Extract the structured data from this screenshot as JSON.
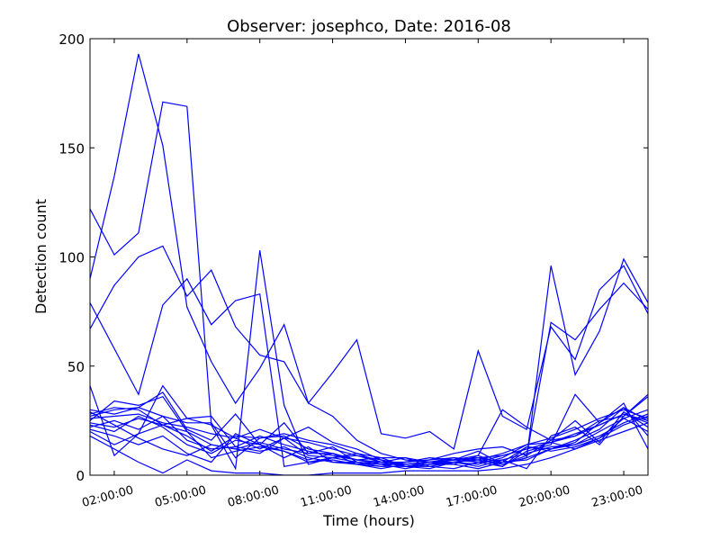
{
  "chart_data": {
    "type": "line",
    "title": "Observer: josephco, Date: 2016-08",
    "xlabel": "Time (hours)",
    "ylabel": "Detection count",
    "xlim": [
      1,
      24
    ],
    "ylim": [
      0,
      200
    ],
    "x_ticks": [
      "02:00:00",
      "05:00:00",
      "08:00:00",
      "11:00:00",
      "14:00:00",
      "17:00:00",
      "20:00:00",
      "23:00:00"
    ],
    "x_tick_hours": [
      2,
      5,
      8,
      11,
      14,
      17,
      20,
      23
    ],
    "y_ticks": [
      0,
      50,
      100,
      150,
      200
    ],
    "grid": false,
    "line_color": "#0000ff",
    "x": [
      1,
      2,
      3,
      4,
      5,
      6,
      7,
      8,
      9,
      10,
      11,
      12,
      13,
      14,
      15,
      16,
      17,
      18,
      19,
      20,
      21,
      22,
      23,
      24
    ],
    "series": [
      {
        "values": [
          122,
          101,
          111,
          171,
          169,
          23,
          17,
          12,
          17,
          15,
          12,
          9,
          7,
          5,
          6,
          7,
          6,
          9,
          12,
          15,
          18,
          23,
          28,
          25
        ]
      },
      {
        "values": [
          90,
          137,
          193,
          151,
          77,
          52,
          33,
          49,
          69,
          33,
          27,
          16,
          10,
          7,
          6,
          8,
          7,
          10,
          14,
          17,
          21,
          26,
          30,
          26
        ]
      },
      {
        "values": [
          67,
          87,
          100,
          105,
          82,
          94,
          68,
          55,
          52,
          33,
          47,
          62,
          19,
          17,
          20,
          12,
          57,
          27,
          21,
          68,
          53,
          85,
          96,
          74
        ]
      },
      {
        "values": [
          79,
          58,
          37,
          78,
          90,
          69,
          80,
          83,
          4,
          6,
          7,
          5,
          3,
          5,
          6,
          7,
          9,
          5,
          8,
          96,
          46,
          66,
          99,
          79
        ]
      },
      {
        "values": [
          41,
          9,
          19,
          41,
          26,
          23,
          3,
          103,
          32,
          5,
          8,
          6,
          4,
          6,
          7,
          10,
          12,
          13,
          9,
          70,
          62,
          76,
          88,
          76
        ]
      },
      {
        "values": [
          30,
          28,
          31,
          27,
          24,
          24,
          8,
          17,
          19,
          16,
          14,
          10,
          8,
          8,
          6,
          5,
          9,
          30,
          22,
          16,
          25,
          15,
          29,
          22
        ]
      },
      {
        "values": [
          28,
          31,
          30,
          23,
          18,
          11,
          18,
          17,
          18,
          12,
          10,
          7,
          5,
          6,
          8,
          7,
          8,
          4,
          11,
          14,
          37,
          24,
          31,
          18
        ]
      },
      {
        "values": [
          27,
          30,
          31,
          38,
          21,
          16,
          28,
          14,
          11,
          7,
          10,
          7,
          8,
          4,
          6,
          7,
          8,
          9,
          12,
          15,
          12,
          17,
          26,
          20
        ]
      },
      {
        "values": [
          26,
          27,
          28,
          24,
          22,
          19,
          17,
          21,
          17,
          9,
          8,
          9,
          6,
          6,
          7,
          8,
          6,
          7,
          10,
          13,
          14,
          18,
          24,
          28
        ]
      },
      {
        "values": [
          25,
          34,
          32,
          36,
          20,
          14,
          12,
          15,
          12,
          10,
          13,
          6,
          5,
          3,
          5,
          7,
          11,
          5,
          9,
          16,
          18,
          25,
          27,
          36
        ]
      },
      {
        "values": [
          24,
          22,
          26,
          23,
          26,
          27,
          13,
          18,
          14,
          11,
          9,
          7,
          6,
          4,
          5,
          6,
          5,
          8,
          14,
          15,
          19,
          23,
          28,
          24
        ]
      },
      {
        "values": [
          23,
          20,
          27,
          22,
          14,
          10,
          16,
          14,
          24,
          10,
          10,
          5,
          4,
          4,
          3,
          6,
          8,
          6,
          13,
          12,
          16,
          21,
          31,
          25
        ]
      },
      {
        "values": [
          22,
          25,
          21,
          27,
          16,
          12,
          13,
          11,
          13,
          8,
          6,
          6,
          5,
          5,
          6,
          6,
          7,
          5,
          8,
          12,
          15,
          24,
          33,
          12
        ]
      },
      {
        "values": [
          21,
          18,
          14,
          18,
          10,
          6,
          19,
          14,
          8,
          13,
          6,
          5,
          6,
          8,
          4,
          6,
          4,
          7,
          3,
          18,
          22,
          14,
          27,
          37
        ]
      },
      {
        "values": [
          20,
          14,
          19,
          23,
          20,
          8,
          11,
          13,
          11,
          6,
          8,
          10,
          6,
          4,
          5,
          5,
          3,
          6,
          7,
          12,
          14,
          20,
          26,
          30
        ]
      },
      {
        "values": [
          29,
          23,
          17,
          12,
          9,
          14,
          12,
          10,
          17,
          22,
          15,
          12,
          7,
          4,
          4,
          3,
          6,
          4,
          13,
          11,
          13,
          17,
          23,
          27
        ]
      },
      {
        "values": [
          18,
          12,
          6,
          1,
          7,
          2,
          1,
          1,
          0,
          0,
          1,
          1,
          1,
          2,
          2,
          2,
          2,
          3,
          5,
          8,
          12,
          16,
          20,
          24
        ]
      }
    ]
  }
}
